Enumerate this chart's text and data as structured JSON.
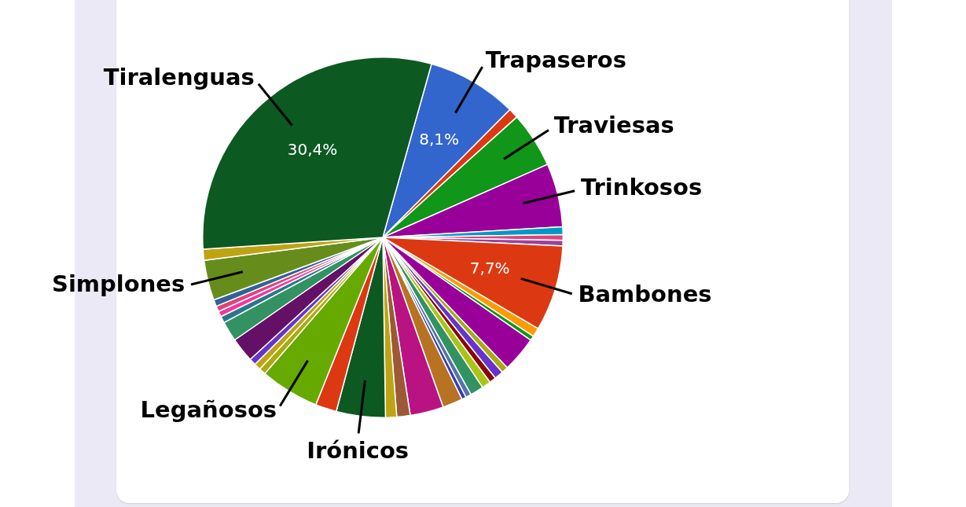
{
  "chart_data": {
    "type": "pie",
    "categories": [
      "Trapaseros",
      null,
      "Traviesas",
      "Trinkosos",
      null,
      null,
      null,
      "Bambones",
      null,
      null,
      null,
      null,
      null,
      null,
      null,
      null,
      null,
      null,
      null,
      null,
      null,
      null,
      "Irónicos",
      null,
      "Legañosos",
      null,
      null,
      null,
      null,
      null,
      null,
      null,
      null,
      null,
      "Simplones",
      null,
      "Tiralenguas"
    ],
    "values": [
      8.1,
      0.9,
      5.0,
      5.7,
      0.7,
      0.5,
      0.5,
      7.7,
      0.8,
      0.4,
      3.2,
      0.6,
      0.8,
      0.6,
      0.8,
      1.2,
      0.5,
      0.4,
      1.8,
      3.0,
      1.2,
      1.0,
      4.4,
      1.9,
      5.3,
      0.6,
      0.6,
      0.6,
      2.2,
      1.8,
      0.6,
      0.5,
      0.5,
      0.6,
      3.6,
      1.0,
      30.4
    ],
    "colors": [
      "#3366cc",
      "#dc3912",
      "#109618",
      "#990099",
      "#0099c6",
      "#dd4477",
      "#994499",
      "#dc3912",
      "#ff9900",
      "#109618",
      "#990099",
      "#aaaa11",
      "#6633cc",
      "#8b0707",
      "#a9c413",
      "#329262",
      "#5574a6",
      "#3b3eac",
      "#b77322",
      "#b91383",
      "#9c5935",
      "#bea413",
      "#0c5922",
      "#dc3912",
      "#66aa00",
      "#aaaa11",
      "#bea413",
      "#6633cc",
      "#651067",
      "#329262",
      "#2a778d",
      "#f4359e",
      "#dd4477",
      "#316395",
      "#668d1c",
      "#bea413",
      "#0c5922"
    ],
    "value_labels": [
      "8,1%",
      null,
      null,
      null,
      null,
      null,
      null,
      "7,7%",
      null,
      null,
      null,
      null,
      null,
      null,
      null,
      null,
      null,
      null,
      null,
      null,
      null,
      null,
      null,
      null,
      null,
      null,
      null,
      null,
      null,
      null,
      null,
      null,
      null,
      null,
      null,
      null,
      "30,4%"
    ],
    "legend": false
  }
}
